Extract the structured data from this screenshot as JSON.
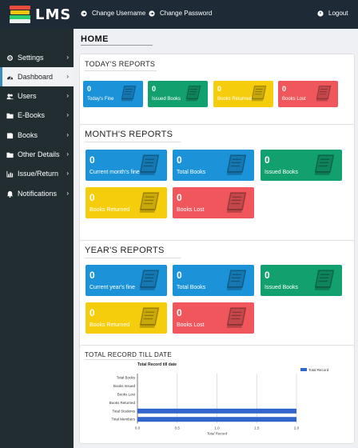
{
  "app": {
    "logo_text": "LMS"
  },
  "topbar": {
    "change_username": "Change Username",
    "change_password": "Change Password",
    "logout": "Logout"
  },
  "sidebar": {
    "items": [
      {
        "label": "Settings",
        "icon": "gears-icon",
        "chevron": true
      },
      {
        "label": "Dashboard",
        "icon": "dashboard-icon",
        "chevron": true,
        "active": true
      },
      {
        "label": "Users",
        "icon": "users-icon",
        "chevron": true
      },
      {
        "label": "E-Books",
        "icon": "folder-icon",
        "chevron": true
      },
      {
        "label": "Books",
        "icon": "book-icon",
        "chevron": true
      },
      {
        "label": "Other Details",
        "icon": "folder-icon",
        "chevron": true
      },
      {
        "label": "Issue/Return",
        "icon": "bar-chart-icon",
        "chevron": true
      },
      {
        "label": "Notifications",
        "icon": "bell-icon",
        "chevron": true
      }
    ]
  },
  "page": {
    "title": "HOME"
  },
  "today": {
    "title": "TODAY'S REPORTS",
    "cards": [
      {
        "value": "0",
        "label": "Today's Fine",
        "color": "#1c93d8"
      },
      {
        "value": "0",
        "label": "Issued Books",
        "color": "#13a06f"
      },
      {
        "value": "0",
        "label": "Books Returned",
        "color": "#f6cd0d"
      },
      {
        "value": "0",
        "label": "Books Lost",
        "color": "#f0575c"
      }
    ]
  },
  "month": {
    "title": "MONTH'S REPORTS",
    "cards": [
      {
        "value": "0",
        "label": "Current month's fine",
        "color": "#1c93d8"
      },
      {
        "value": "0",
        "label": "Total Books",
        "color": "#1c93d8"
      },
      {
        "value": "0",
        "label": "Issued Books",
        "color": "#13a06f"
      },
      {
        "value": "0",
        "label": "Books Returned",
        "color": "#f6cd0d"
      },
      {
        "value": "0",
        "label": "Books Lost",
        "color": "#f0575c"
      }
    ]
  },
  "year": {
    "title": "YEAR'S REPORTS",
    "cards": [
      {
        "value": "0",
        "label": "Current year's fine",
        "color": "#1c93d8"
      },
      {
        "value": "0",
        "label": "Total Books",
        "color": "#1c93d8"
      },
      {
        "value": "0",
        "label": "Issued Books",
        "color": "#13a06f"
      },
      {
        "value": "0",
        "label": "Books Returned",
        "color": "#f6cd0d"
      },
      {
        "value": "0",
        "label": "Books Lost",
        "color": "#f0575c"
      }
    ]
  },
  "total": {
    "title": "TOTAL RECORD TILL DATE"
  },
  "chart_data": {
    "type": "bar",
    "orientation": "horizontal",
    "title": "Total Record till date",
    "xlabel": "Total Record",
    "ylabel": "",
    "categories": [
      "Total Books",
      "Books Issued",
      "Books Lost",
      "Books Returned",
      "Total Students",
      "Total Members"
    ],
    "series": [
      {
        "name": "Total Record",
        "values": [
          0,
          0,
          0,
          0,
          2,
          2
        ],
        "color": "#3366cc"
      }
    ],
    "xlim": [
      0,
      2
    ],
    "xticks": [
      "0.0",
      "0.5",
      "1.0",
      "1.5",
      "2.0"
    ],
    "grid": true,
    "legend": "top-right"
  }
}
